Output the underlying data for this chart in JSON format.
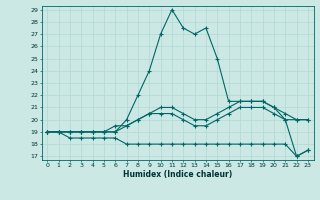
{
  "xlabel": "Humidex (Indice chaleur)",
  "bg_color": "#cce8e4",
  "line_color": "#006666",
  "grid_color": "#b0d8d4",
  "x": [
    0,
    1,
    2,
    3,
    4,
    5,
    6,
    7,
    8,
    9,
    10,
    11,
    12,
    13,
    14,
    15,
    16,
    17,
    18,
    19,
    20,
    21,
    22,
    23
  ],
  "line1": [
    19,
    19,
    19,
    19,
    19,
    19,
    19,
    20,
    22,
    24,
    27,
    29,
    27.5,
    27,
    27.5,
    25,
    21.5,
    21.5,
    21.5,
    21.5,
    21,
    20,
    17,
    17.5
  ],
  "line2": [
    19,
    19,
    19,
    19,
    19,
    19,
    19.5,
    19.5,
    20,
    20.5,
    21,
    21,
    20.5,
    20,
    20,
    20.5,
    21,
    21.5,
    21.5,
    21.5,
    21,
    20.5,
    20,
    20
  ],
  "line3": [
    19,
    19,
    19,
    19,
    19,
    19,
    19,
    19.5,
    20,
    20.5,
    20.5,
    20.5,
    20,
    19.5,
    19.5,
    20,
    20.5,
    21,
    21,
    21,
    20.5,
    20,
    20,
    20
  ],
  "line4": [
    19,
    19,
    18.5,
    18.5,
    18.5,
    18.5,
    18.5,
    18,
    18,
    18,
    18,
    18,
    18,
    18,
    18,
    18,
    18,
    18,
    18,
    18,
    18,
    18,
    17,
    17.5
  ],
  "ylim_min": 17,
  "ylim_max": 29,
  "xlim_min": -0.5,
  "xlim_max": 23.5,
  "yticks": [
    17,
    18,
    19,
    20,
    21,
    22,
    23,
    24,
    25,
    26,
    27,
    28,
    29
  ],
  "xticks": [
    0,
    1,
    2,
    3,
    4,
    5,
    6,
    7,
    8,
    9,
    10,
    11,
    12,
    13,
    14,
    15,
    16,
    17,
    18,
    19,
    20,
    21,
    22,
    23
  ]
}
